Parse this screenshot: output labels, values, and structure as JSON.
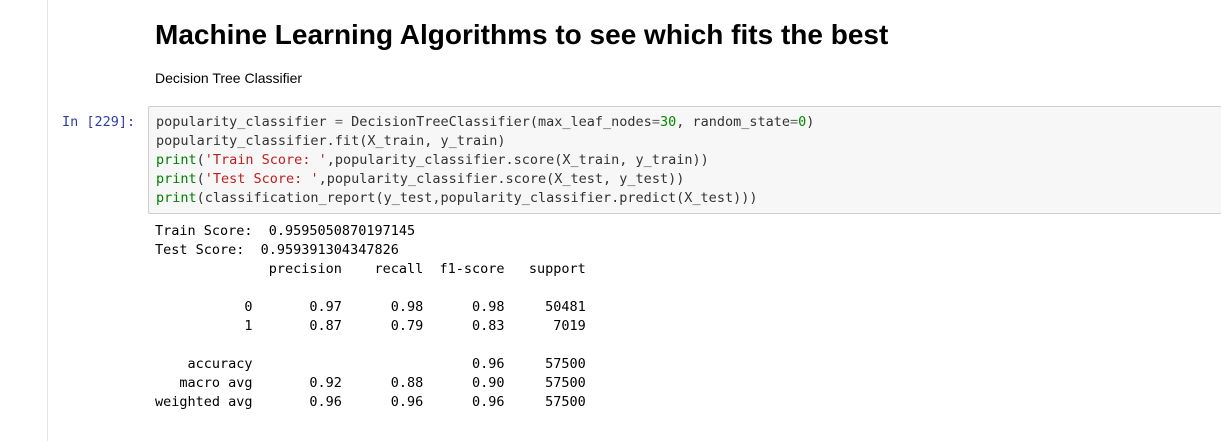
{
  "markdown": {
    "title": "Machine Learning Algorithms to see which fits the best",
    "subtitle": "Decision Tree Classifier"
  },
  "cell": {
    "prompt": "In [229]:",
    "code_lines": [
      "popularity_classifier = DecisionTreeClassifier(max_leaf_nodes=30, random_state=0)",
      "popularity_classifier.fit(X_train, y_train)",
      "print('Train Score: ',popularity_classifier.score(X_train, y_train))",
      "print('Test Score: ',popularity_classifier.score(X_test, y_test))",
      "print(classification_report(y_test,popularity_classifier.predict(X_test)))"
    ]
  },
  "output": {
    "lines": [
      "Train Score:  0.9595050870197145",
      "Test Score:  0.959391304347826",
      "              precision    recall  f1-score   support",
      "",
      "           0       0.97      0.98      0.98     50481",
      "           1       0.87      0.79      0.83      7019",
      "",
      "    accuracy                           0.96     57500",
      "   macro avg       0.92      0.88      0.90     57500",
      "weighted avg       0.96      0.96      0.96     57500"
    ]
  }
}
